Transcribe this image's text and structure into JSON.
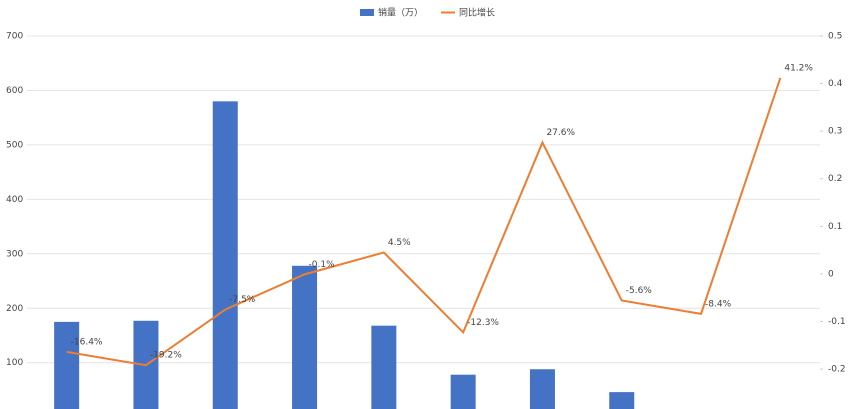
{
  "chart_data": {
    "type": "bar-line",
    "categories": [
      null,
      null,
      null,
      null,
      null,
      null,
      null,
      null,
      null,
      null
    ],
    "series": [
      {
        "name": "销量（万）",
        "color": "#4472c4",
        "values": [
          175,
          177,
          580,
          278,
          168,
          78,
          88,
          46,
          null,
          null
        ]
      },
      {
        "name": "同比增长",
        "color": "#ed7d31",
        "axis": "y2",
        "values": [
          -0.164,
          -0.192,
          -0.075,
          -0.001,
          0.045,
          -0.123,
          0.276,
          -0.056,
          -0.084,
          0.412
        ],
        "value_labels": [
          "-16.4%",
          "-19.2%",
          "-7.5%",
          "-0.1%",
          "4.5%",
          "-12.3%",
          "27.6%",
          "-5.6%",
          "-8.4%",
          "41.2%"
        ]
      }
    ],
    "ylim": [
      15,
      700
    ],
    "yticks": [
      100,
      200,
      300,
      400,
      500,
      600,
      700
    ],
    "y2lim": [
      -0.284,
      0.5
    ],
    "y2ticks": [
      -0.2,
      -0.1,
      0,
      0.1,
      0.2,
      0.3,
      0.4,
      0.5
    ],
    "grid": true
  }
}
